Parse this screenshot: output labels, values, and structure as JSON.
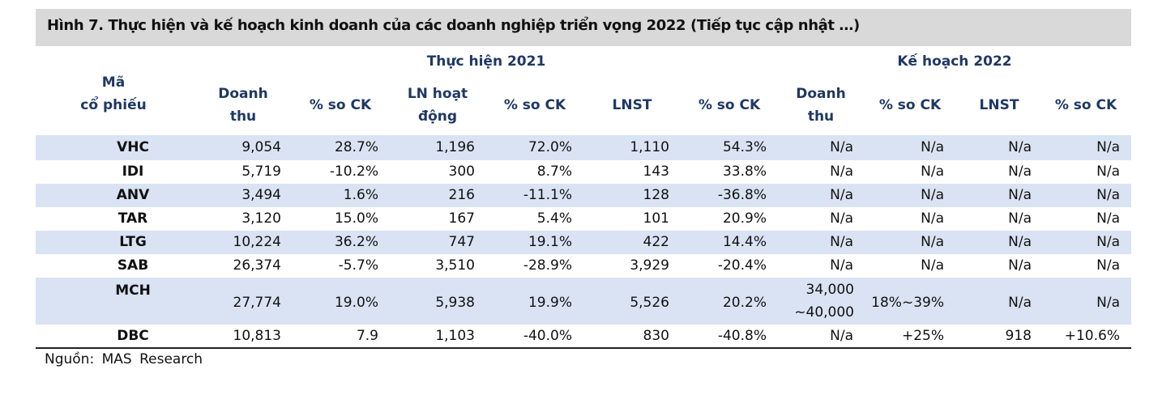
{
  "title": "Hình 7. Thực hiện và kế hoạch kinh doanh của các doanh nghiệp triển vọng 2022 (Tiếp tục cập nhật …)",
  "groups": {
    "actual": "Thực hiện 2021",
    "plan": "Kế hoạch 2022"
  },
  "columns": {
    "code_1": "Mã",
    "code_2": "cổ phiếu",
    "rev_a1": "Doanh",
    "rev_a2": "thu",
    "pct1": "% so CK",
    "op1": "LN hoạt",
    "op2": "động",
    "pct2": "% so CK",
    "npat": "LNST",
    "pct3": "% so CK",
    "rev_p1": "Doanh",
    "rev_p2": "thu",
    "pct4": "% so CK",
    "npat_p": "LNST",
    "pct5": "% so CK"
  },
  "rows": [
    {
      "code": "VHC",
      "rev": "9,054",
      "rev_pct": "28.7%",
      "op": "1,196",
      "op_pct": "72.0%",
      "npat": "1,110",
      "npat_pct": "54.3%",
      "p_rev": "N/a",
      "p_rev_pct": "N/a",
      "p_npat": "N/a",
      "p_npat_pct": "N/a"
    },
    {
      "code": "IDI",
      "rev": "5,719",
      "rev_pct": "-10.2%",
      "op": "300",
      "op_pct": "8.7%",
      "npat": "143",
      "npat_pct": "33.8%",
      "p_rev": "N/a",
      "p_rev_pct": "N/a",
      "p_npat": "N/a",
      "p_npat_pct": "N/a"
    },
    {
      "code": "ANV",
      "rev": "3,494",
      "rev_pct": "1.6%",
      "op": "216",
      "op_pct": "-11.1%",
      "npat": "128",
      "npat_pct": "-36.8%",
      "p_rev": "N/a",
      "p_rev_pct": "N/a",
      "p_npat": "N/a",
      "p_npat_pct": "N/a"
    },
    {
      "code": "TAR",
      "rev": "3,120",
      "rev_pct": "15.0%",
      "op": "167",
      "op_pct": "5.4%",
      "npat": "101",
      "npat_pct": "20.9%",
      "p_rev": "N/a",
      "p_rev_pct": "N/a",
      "p_npat": "N/a",
      "p_npat_pct": "N/a"
    },
    {
      "code": "LTG",
      "rev": "10,224",
      "rev_pct": "36.2%",
      "op": "747",
      "op_pct": "19.1%",
      "npat": "422",
      "npat_pct": "14.4%",
      "p_rev": "N/a",
      "p_rev_pct": "N/a",
      "p_npat": "N/a",
      "p_npat_pct": "N/a"
    },
    {
      "code": "SAB",
      "rev": "26,374",
      "rev_pct": "-5.7%",
      "op": "3,510",
      "op_pct": "-28.9%",
      "npat": "3,929",
      "npat_pct": "-20.4%",
      "p_rev": "N/a",
      "p_rev_pct": "N/a",
      "p_npat": "N/a",
      "p_npat_pct": "N/a"
    },
    {
      "code": "MCH",
      "rev": "27,774",
      "rev_pct": "19.0%",
      "op": "5,938",
      "op_pct": "19.9%",
      "npat": "5,526",
      "npat_pct": "20.2%",
      "p_rev_1": "34,000",
      "p_rev_2": "~40,000",
      "p_rev_pct": "18%~39%",
      "p_npat": "N/a",
      "p_npat_pct": "N/a"
    },
    {
      "code": "DBC",
      "rev": "10,813",
      "rev_pct": "7.9",
      "op": "1,103",
      "op_pct": "-40.0%",
      "npat": "830",
      "npat_pct": "-40.8%",
      "p_rev": "N/a",
      "p_rev_pct": "+25%",
      "p_npat": "918",
      "p_npat_pct": "+10.6%"
    }
  ],
  "source": "Nguồn: MAS Research"
}
